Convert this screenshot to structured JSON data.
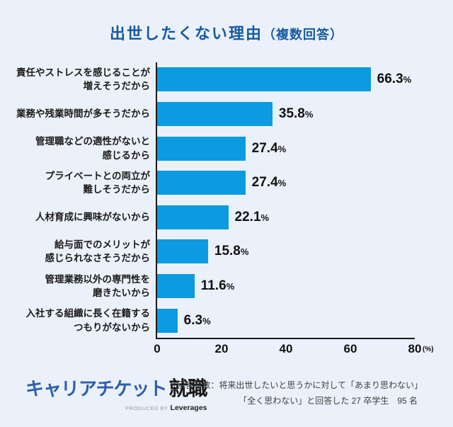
{
  "title": {
    "main": "出世したくない理由",
    "paren": "（複数回答）"
  },
  "chart_data": {
    "type": "bar",
    "orientation": "horizontal",
    "title": "出世したくない理由（複数回答）",
    "categories": [
      [
        "責任やストレスを感じることが",
        "増えそうだから"
      ],
      [
        "業務や残業時間が多そうだから"
      ],
      [
        "管理職などの適性がないと",
        "感じるから"
      ],
      [
        "プライベートとの両立が",
        "難しそうだから"
      ],
      [
        "人材育成に興味がないから"
      ],
      [
        "給与面でのメリットが",
        "感じられなさそうだから"
      ],
      [
        "管理業務以外の専門性を",
        "磨きたいから"
      ],
      [
        "入社する組織に長く在籍する",
        "つもりがないから"
      ]
    ],
    "values": [
      66.3,
      35.8,
      27.4,
      27.4,
      22.1,
      15.8,
      11.6,
      6.3
    ],
    "value_labels": [
      "66.3",
      "35.8",
      "27.4",
      "27.4",
      "22.1",
      "15.8",
      "11.6",
      "6.3"
    ],
    "unit": "%",
    "xlabel": "",
    "ylabel": "",
    "xlim": [
      0,
      80
    ],
    "x_ticks": [
      "0",
      "20",
      "40",
      "60",
      "80"
    ],
    "x_axis_unit_label": "(%)",
    "grid": false,
    "legend": "none",
    "bar_color": "#0c9ae0"
  },
  "footer": {
    "logo": {
      "brand": "キャリアチケット",
      "suffix": "就職",
      "produced_by": "PRODUCED BY",
      "company": "Leverages"
    },
    "note_line1": "※回答者数：将来出世したいと思うかに対して「あまり思わない」",
    "note_line2": "「全く思わない」と回答した 27 卒学生　95 名"
  },
  "colors": {
    "background": "#ebf1fb",
    "bar": "#0c9ae0",
    "title": "#17599e",
    "axis": "#1a1a1a",
    "logo_blue": "#2d5fae",
    "produced_by_gray": "#9a9a9a"
  }
}
